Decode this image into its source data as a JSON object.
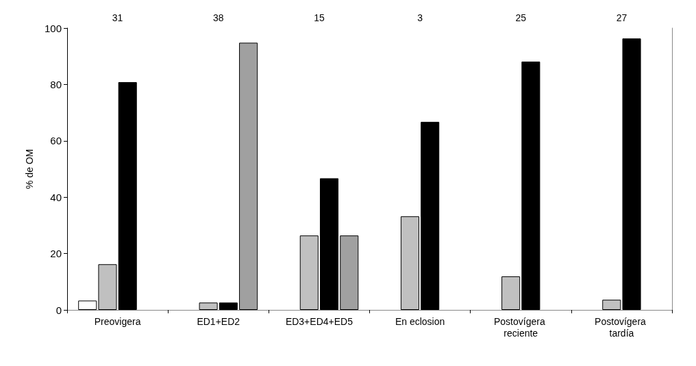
{
  "chart_data": {
    "type": "bar",
    "ylabel": "% de OM",
    "categories": [
      "Preovigera",
      "ED1+ED2",
      "ED3+ED4+ED5",
      "En eclosion",
      "Postovígera reciente",
      "Postovígera tardía"
    ],
    "series": [
      {
        "color": "#ffffff",
        "values": [
          3.3,
          null,
          null,
          null,
          null,
          null
        ]
      },
      {
        "color": "#c0c0c0",
        "values": [
          16.2,
          2.6,
          26.4,
          33.2,
          11.9,
          3.6
        ]
      },
      {
        "color": "#000000",
        "values": [
          80.8,
          2.6,
          46.7,
          66.7,
          88.1,
          96.3
        ]
      },
      {
        "color": "#a0a0a0",
        "values": [
          null,
          94.8,
          26.4,
          null,
          null,
          null
        ]
      }
    ],
    "ylim": [
      0,
      100
    ],
    "yticks": [
      0,
      20,
      40,
      60,
      80,
      100
    ],
    "grid": false,
    "annotations": [
      "31",
      "38",
      "15",
      "3",
      "25",
      "27"
    ]
  }
}
